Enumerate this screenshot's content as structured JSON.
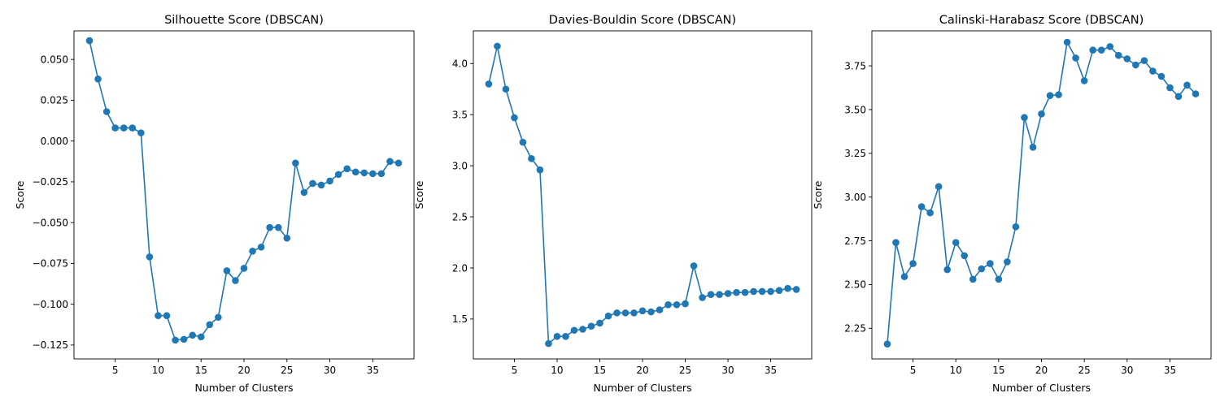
{
  "chart_data": [
    {
      "type": "line",
      "title": "Silhouette Score (DBSCAN)",
      "xlabel": "Number of Clusters",
      "ylabel": "Score",
      "xlim": [
        0.2,
        39.8
      ],
      "ylim": [
        -0.1335,
        0.0675
      ],
      "xticks": [
        5,
        10,
        15,
        20,
        25,
        30,
        35
      ],
      "yticks": [
        -0.125,
        -0.1,
        -0.075,
        -0.05,
        -0.025,
        0.0,
        0.025,
        0.05
      ],
      "ytick_labels": [
        "−0.125",
        "−0.100",
        "−0.075",
        "−0.050",
        "−0.025",
        "0.000",
        "0.025",
        "0.050"
      ],
      "grid": false,
      "color": "#1f77b4",
      "x": [
        2,
        3,
        4,
        5,
        6,
        7,
        8,
        9,
        10,
        11,
        12,
        13,
        14,
        15,
        16,
        17,
        18,
        19,
        20,
        21,
        22,
        23,
        24,
        25,
        26,
        27,
        28,
        29,
        30,
        31,
        32,
        33,
        34,
        35,
        36,
        37,
        38
      ],
      "values": [
        0.0615,
        0.038,
        0.018,
        0.008,
        0.008,
        0.008,
        0.005,
        -0.071,
        -0.107,
        -0.107,
        -0.122,
        -0.1215,
        -0.119,
        -0.12,
        -0.1125,
        -0.108,
        -0.0795,
        -0.0855,
        -0.078,
        -0.0675,
        -0.065,
        -0.053,
        -0.053,
        -0.0595,
        -0.0135,
        -0.0315,
        -0.026,
        -0.027,
        -0.0245,
        -0.0205,
        -0.017,
        -0.019,
        -0.0195,
        -0.02,
        -0.02,
        -0.0125,
        -0.0135
      ]
    },
    {
      "type": "line",
      "title": "Davies-Bouldin Score (DBSCAN)",
      "xlabel": "Number of Clusters",
      "ylabel": "Score",
      "xlim": [
        0.2,
        39.8
      ],
      "ylim": [
        1.11,
        4.32
      ],
      "xticks": [
        5,
        10,
        15,
        20,
        25,
        30,
        35
      ],
      "yticks": [
        1.5,
        2.0,
        2.5,
        3.0,
        3.5,
        4.0
      ],
      "ytick_labels": [
        "1.5",
        "2.0",
        "2.5",
        "3.0",
        "3.5",
        "4.0"
      ],
      "grid": false,
      "color": "#1f77b4",
      "x": [
        2,
        3,
        4,
        5,
        6,
        7,
        8,
        9,
        10,
        11,
        12,
        13,
        14,
        15,
        16,
        17,
        18,
        19,
        20,
        21,
        22,
        23,
        24,
        25,
        26,
        27,
        28,
        29,
        30,
        31,
        32,
        33,
        34,
        35,
        36,
        37,
        38
      ],
      "values": [
        3.8,
        4.17,
        3.75,
        3.47,
        3.23,
        3.07,
        2.96,
        1.26,
        1.33,
        1.33,
        1.39,
        1.4,
        1.43,
        1.46,
        1.53,
        1.56,
        1.56,
        1.56,
        1.58,
        1.57,
        1.59,
        1.64,
        1.64,
        1.65,
        2.02,
        1.71,
        1.74,
        1.74,
        1.75,
        1.76,
        1.76,
        1.77,
        1.77,
        1.77,
        1.78,
        1.8,
        1.79
      ]
    },
    {
      "type": "line",
      "title": "Calinski-Harabasz Score (DBSCAN)",
      "xlabel": "Number of Clusters",
      "ylabel": "Score",
      "xlim": [
        0.2,
        39.8
      ],
      "ylim": [
        2.075,
        3.95
      ],
      "xticks": [
        5,
        10,
        15,
        20,
        25,
        30,
        35
      ],
      "yticks": [
        2.25,
        2.5,
        2.75,
        3.0,
        3.25,
        3.5,
        3.75
      ],
      "ytick_labels": [
        "2.25",
        "2.50",
        "2.75",
        "3.00",
        "3.25",
        "3.50",
        "3.75"
      ],
      "grid": false,
      "color": "#1f77b4",
      "x": [
        2,
        3,
        4,
        5,
        6,
        7,
        8,
        9,
        10,
        11,
        12,
        13,
        14,
        15,
        16,
        17,
        18,
        19,
        20,
        21,
        22,
        23,
        24,
        25,
        26,
        27,
        28,
        29,
        30,
        31,
        32,
        33,
        34,
        35,
        36,
        37,
        38
      ],
      "values": [
        2.16,
        2.74,
        2.545,
        2.62,
        2.945,
        2.91,
        3.06,
        2.585,
        2.74,
        2.665,
        2.53,
        2.59,
        2.62,
        2.53,
        2.63,
        2.83,
        3.455,
        3.285,
        3.475,
        3.58,
        3.585,
        3.885,
        3.795,
        3.665,
        3.84,
        3.84,
        3.86,
        3.81,
        3.79,
        3.755,
        3.78,
        3.72,
        3.69,
        3.625,
        3.575,
        3.64,
        3.59
      ]
    }
  ]
}
